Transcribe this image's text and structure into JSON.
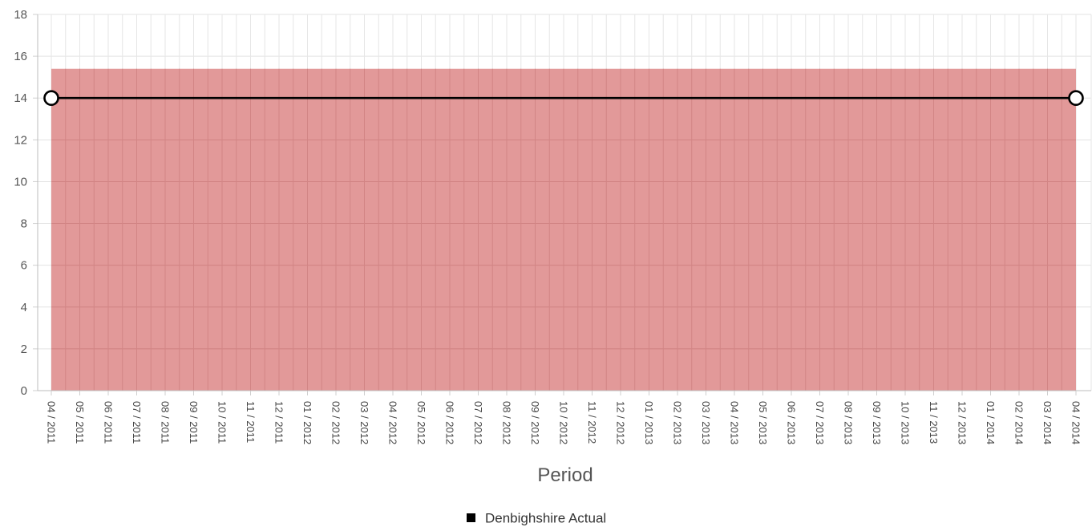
{
  "chart_data": {
    "type": "line",
    "xlabel": "Period",
    "ylabel": "",
    "ylim": [
      0,
      18
    ],
    "yticks": [
      0,
      2,
      4,
      6,
      8,
      10,
      12,
      14,
      16,
      18
    ],
    "grid": true,
    "legend_position": "bottom",
    "categories": [
      "04 / 2011",
      "05 / 2011",
      "06 / 2011",
      "07 / 2011",
      "08 / 2011",
      "09 / 2011",
      "10 / 2011",
      "11 / 2011",
      "12 / 2011",
      "01 / 2012",
      "02 / 2012",
      "03 / 2012",
      "04 / 2012",
      "05 / 2012",
      "06 / 2012",
      "07 / 2012",
      "08 / 2012",
      "09 / 2012",
      "10 / 2012",
      "11 / 2012",
      "12 / 2012",
      "01 / 2013",
      "02 / 2013",
      "03 / 2013",
      "04 / 2013",
      "05 / 2013",
      "06 / 2013",
      "07 / 2013",
      "08 / 2013",
      "09 / 2013",
      "10 / 2013",
      "11 / 2013",
      "12 / 2013",
      "01 / 2014",
      "02 / 2014",
      "03 / 2014",
      "04 / 2014"
    ],
    "band": {
      "from": "04 / 2011",
      "to": "04 / 2014",
      "ymin": 0,
      "ymax": 15.4,
      "color": "#e09090"
    },
    "series": [
      {
        "name": "Denbighshire Actual",
        "color": "#000000",
        "points": [
          {
            "x": "04 / 2011",
            "y": 14
          },
          {
            "x": "04 / 2014",
            "y": 14
          }
        ]
      }
    ]
  }
}
